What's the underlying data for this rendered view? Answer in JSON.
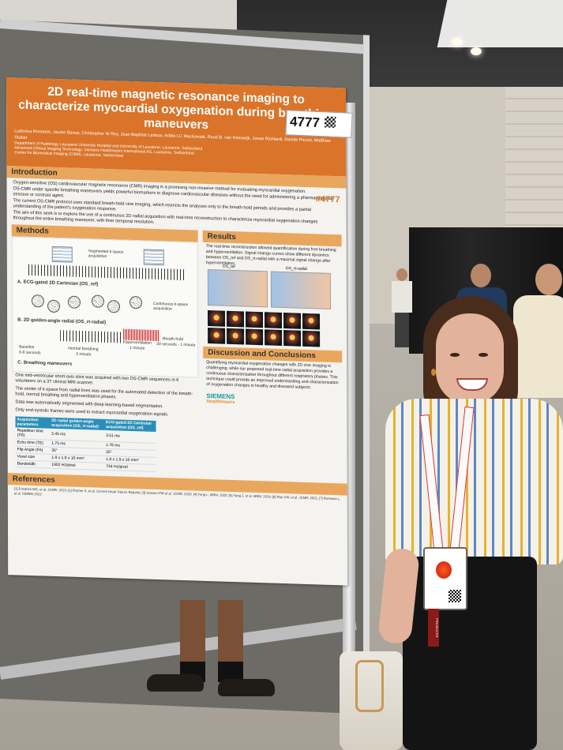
{
  "poster": {
    "title": "2D real-time magnetic resonance imaging to characterize myocardial oxygenation during breathing maneuvers",
    "authors": "Ludovica Romanin, Jaume Banus, Christopher W Roy, Jean Baptiste Ledoux, Adèle LC Mackowiak, Ruud B. van Heeswijk, Jonas Richiardi, Davide Piccini, Matthias Stuber",
    "affiliations": [
      "Department of Radiology, Lausanne University Hospital and University of Lausanne, Lausanne, Switzerland",
      "Advanced Clinical Imaging Technology, Siemens Healthineers International AG, Lausanne, Switzerland",
      "Center for Biomedical Imaging (CIBM), Lausanne, Switzerland"
    ],
    "poster_tag": "#4777",
    "board_number": "4777",
    "introduction": {
      "heading": "Introduction",
      "bullets": [
        "Oxygen-sensitive (OS) cardiovascular magnetic resonance (CMR) imaging is a promising non-invasive method for evaluating myocardial oxygenation.",
        "OS-CMR under specific breathing maneuvers yields powerful biomarkers to diagnose cardiovascular diseases without the need for administering a pharmacological stressor or contrast agent.",
        "The current OS-CMR protocol uses standard breath-held cine imaging, which restricts the analyses only to the breath-hold periods and provides a partial understanding of the patient's oxygenation response.",
        "The aim of this work is to explore the use of a continuous 2D radial acquisition with real-time reconstruction to characterize myocardial oxygenation changes throughout the entire breathing maneuver, with finer temporal resolution."
      ]
    },
    "methods": {
      "heading": "Methods",
      "fig_labels": {
        "segmented": "Segmented k-space acquisition",
        "a": "A. ECG-gated 2D Cartesian (OS_ref)",
        "continuous": "Continuous k-space acquisition",
        "b": "B. 2D golden-angle radial (OS_rt-radial)",
        "c": "C. Breathing maneuvers",
        "baseline": "Baseline",
        "baseline_t": "6-8 seconds",
        "normal": "Normal breathing",
        "normal_t": "2 minute",
        "hyper": "Hyperventilation",
        "hyper_t": "1 minute",
        "bh": "Breath-hold",
        "bh_t": "30 seconds - 1 minute"
      },
      "bullets": [
        "One mid-ventricular short-axis slice was acquired with two OS-CMR sequences in 6 volunteers on a 3T clinical MRI scanner.",
        "The center of k-space from radial lines was used for the automated detection of the breath-hold, normal breathing and hyperventilation phases.",
        "Data was automatically segmented with deep learning-based segmentation.",
        "Only end-systolic frames were used to extract myocardial oxygenation signals."
      ],
      "table": {
        "headers": [
          "Acquisition parameters",
          "2D radial golden-angle acquisition (OS_rt-radial)",
          "ECG-gated 2D Cartesian acquisition (OS_ref)"
        ],
        "rows": [
          [
            "Repetition time (TR)",
            "3.45 ms",
            "3.51 ms"
          ],
          [
            "Echo time (TE)",
            "1.73 ms",
            "1.76 ms"
          ],
          [
            "Flip Angle (FA)",
            "35°",
            "35°"
          ],
          [
            "Voxel size",
            "1.9 x 1.9 x 10 mm³",
            "1.9 x 1.9 x 10 mm³"
          ],
          [
            "Bandwidth",
            "1902 Hz/pixel",
            "744 Hz/pixel"
          ]
        ]
      }
    },
    "results": {
      "heading": "Results",
      "text": "The real-time reconstruction allowed quantification during free breathing and hyperventilation. Signal change curves show different dynamics between OS_ref and OS_rt-radial with a maximal signal change after hyperventilation.",
      "plot1": "OS_ref",
      "plot2": "OS_rt-radial"
    },
    "discussion": {
      "heading": "Discussion and Conclusions",
      "text": "Quantifying myocardial oxygenation changes with 2D cine imaging is challenging, while our proposed real-time radial acquisition provides a continuous characterization throughout different respiratory phases. This technique could provide an improved understanding and characterization of oxygenation changes in healthy and diseased subjects."
    },
    "references_heading": "References",
    "references_text": "[1] Friedrich MG, et al. JCMR, 2013; [2] Fischer K, et al. Current Heart Failure Reports; [3] Hansen PW et al. JCMR, 2020; [4] Feng L, MRM, 2020; [5] Yang J, et al. MRM, 2019; [6] Roy CW, et al. JCMR, 2021; [7] Romanin L, et al. ISMRM 2023",
    "sponsor": "SIEMENS",
    "sponsor_sub": "Healthineers"
  },
  "badge": {
    "role": "PRESENTER"
  },
  "colors": {
    "header_orange": "#d9742a",
    "section_orange": "#e9a75d",
    "table_blue": "#2a8fb8",
    "shirt_yellow": "#e4b32e",
    "shirt_blue": "#5d87c6"
  }
}
